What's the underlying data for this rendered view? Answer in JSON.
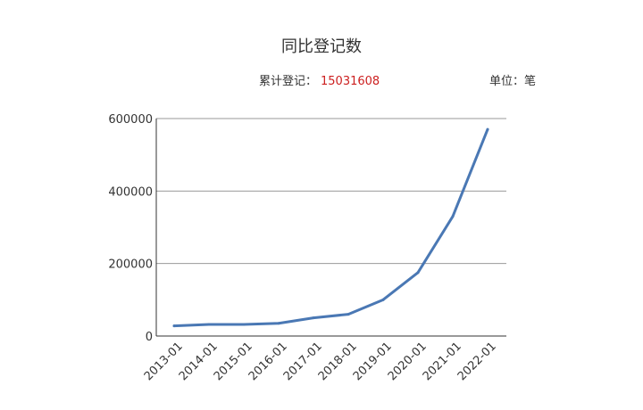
{
  "chart_data": {
    "type": "line",
    "title": "同比登记数",
    "summary_label": "累计登记：",
    "summary_value": "15031608",
    "unit_label": "单位：笔",
    "categories": [
      "2013-01",
      "2014-01",
      "2015-01",
      "2016-01",
      "2017-01",
      "2018-01",
      "2019-01",
      "2020-01",
      "2021-01",
      "2022-01"
    ],
    "series": [
      {
        "values": [
          28000,
          32000,
          32000,
          35000,
          50000,
          60000,
          100000,
          175000,
          330000,
          570000
        ]
      }
    ],
    "ylim": [
      0,
      600000
    ],
    "yticks": [
      "0",
      "200000",
      "400000",
      "600000"
    ],
    "grid": true,
    "colors": {
      "line": "#4a78b4",
      "grid": "#999999",
      "axis": "#333333"
    }
  }
}
